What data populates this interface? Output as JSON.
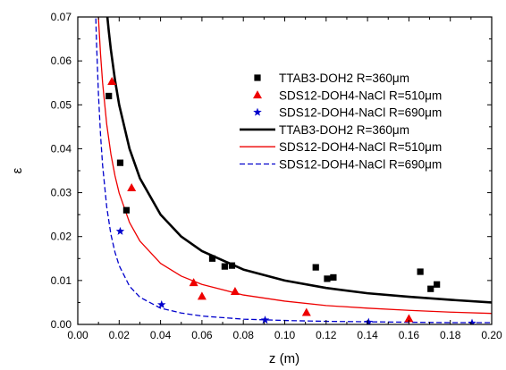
{
  "chart_data": {
    "type": "scatter",
    "title": "",
    "xlabel": "z (m)",
    "ylabel": "ε",
    "xlim": [
      0.0,
      0.2
    ],
    "ylim": [
      0.0,
      0.07
    ],
    "xticks": [
      "0.00",
      "0.02",
      "0.04",
      "0.06",
      "0.08",
      "0.10",
      "0.12",
      "0.14",
      "0.16",
      "0.18",
      "0.20"
    ],
    "yticks": [
      "0.00",
      "0.01",
      "0.02",
      "0.03",
      "0.04",
      "0.05",
      "0.06",
      "0.07"
    ],
    "grid": false,
    "legend_position": "top-right",
    "series": [
      {
        "name": "TTAB3-DOH2 R=360μm",
        "kind": "points",
        "marker": "square",
        "color": "#000000",
        "points": [
          [
            0.015,
            0.052
          ],
          [
            0.0205,
            0.0368
          ],
          [
            0.0235,
            0.026
          ],
          [
            0.065,
            0.015
          ],
          [
            0.071,
            0.0132
          ],
          [
            0.0745,
            0.0134
          ],
          [
            0.115,
            0.013
          ],
          [
            0.1205,
            0.0104
          ],
          [
            0.1235,
            0.0107
          ],
          [
            0.1655,
            0.012
          ],
          [
            0.1705,
            0.0081
          ],
          [
            0.1735,
            0.0091
          ]
        ]
      },
      {
        "name": "SDS12-DOH4-NaCl R=510μm",
        "kind": "points",
        "marker": "triangle",
        "color": "#ee0000",
        "points": [
          [
            0.0165,
            0.0553
          ],
          [
            0.026,
            0.0311
          ],
          [
            0.056,
            0.0095
          ],
          [
            0.06,
            0.0064
          ],
          [
            0.076,
            0.0075
          ],
          [
            0.1105,
            0.0027
          ],
          [
            0.16,
            0.0013
          ]
        ]
      },
      {
        "name": "SDS12-DOH4-NaCl R=690μm",
        "kind": "points",
        "marker": "star",
        "color": "#0000cc",
        "points": [
          [
            0.0205,
            0.0212
          ],
          [
            0.0405,
            0.0045
          ],
          [
            0.0905,
            0.001
          ],
          [
            0.1405,
            0.0005
          ],
          [
            0.1905,
            0.0003
          ]
        ]
      },
      {
        "name": "TTAB3-DOH2 R=360μm",
        "kind": "curve",
        "line_style": "solid-thick",
        "color": "#000000",
        "points": [
          [
            0.013,
            0.077
          ],
          [
            0.014,
            0.0714
          ],
          [
            0.015,
            0.0667
          ],
          [
            0.016,
            0.0625
          ],
          [
            0.018,
            0.0556
          ],
          [
            0.02,
            0.05
          ],
          [
            0.025,
            0.04
          ],
          [
            0.03,
            0.0333
          ],
          [
            0.04,
            0.025
          ],
          [
            0.05,
            0.02
          ],
          [
            0.06,
            0.0167
          ],
          [
            0.08,
            0.0125
          ],
          [
            0.1,
            0.01
          ],
          [
            0.12,
            0.0083
          ],
          [
            0.14,
            0.0071
          ],
          [
            0.16,
            0.0063
          ],
          [
            0.18,
            0.0056
          ],
          [
            0.2,
            0.005
          ]
        ]
      },
      {
        "name": "SDS12-DOH4-NaCl R=510μm",
        "kind": "curve",
        "line_style": "solid-thin",
        "color": "#ee0000",
        "points": [
          [
            0.0093,
            0.077
          ],
          [
            0.01,
            0.0697
          ],
          [
            0.011,
            0.0615
          ],
          [
            0.012,
            0.055
          ],
          [
            0.014,
            0.0455
          ],
          [
            0.016,
            0.0388
          ],
          [
            0.018,
            0.0338
          ],
          [
            0.02,
            0.0299
          ],
          [
            0.025,
            0.0232
          ],
          [
            0.03,
            0.019
          ],
          [
            0.04,
            0.0139
          ],
          [
            0.05,
            0.011
          ],
          [
            0.06,
            0.0091
          ],
          [
            0.08,
            0.0067
          ],
          [
            0.1,
            0.0053
          ],
          [
            0.12,
            0.0043
          ],
          [
            0.14,
            0.0037
          ],
          [
            0.16,
            0.0032
          ],
          [
            0.18,
            0.0028
          ],
          [
            0.2,
            0.0025
          ]
        ]
      },
      {
        "name": "SDS12-DOH4-NaCl R=690μm",
        "kind": "curve",
        "line_style": "dashed",
        "color": "#0000cc",
        "points": [
          [
            0.0083,
            0.077
          ],
          [
            0.009,
            0.0649
          ],
          [
            0.01,
            0.0523
          ],
          [
            0.011,
            0.0431
          ],
          [
            0.012,
            0.0362
          ],
          [
            0.014,
            0.0267
          ],
          [
            0.016,
            0.0205
          ],
          [
            0.018,
            0.0164
          ],
          [
            0.02,
            0.0134
          ],
          [
            0.025,
            0.0087
          ],
          [
            0.03,
            0.0062
          ],
          [
            0.04,
            0.0037
          ],
          [
            0.05,
            0.0026
          ],
          [
            0.06,
            0.0019
          ],
          [
            0.08,
            0.0012
          ],
          [
            0.1,
            0.0009
          ],
          [
            0.12,
            0.0007
          ],
          [
            0.14,
            0.0006
          ],
          [
            0.16,
            0.0005
          ],
          [
            0.18,
            0.0004
          ],
          [
            0.2,
            0.0004
          ]
        ]
      }
    ]
  }
}
